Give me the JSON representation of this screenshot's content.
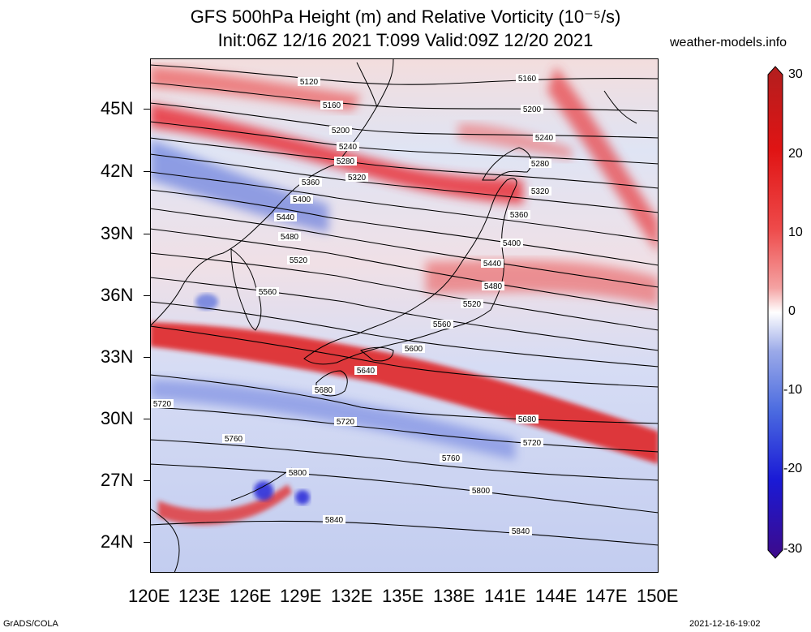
{
  "header": {
    "title_line1": "GFS 500hPa Height (m) and Relative Vorticity (10⁻⁵/s)",
    "title_line2": "Init:06Z 12/16 2021 T:099 Valid:09Z 12/20 2021",
    "site": "weather-models.info"
  },
  "axes": {
    "lat_labels": [
      "45N",
      "42N",
      "39N",
      "36N",
      "33N",
      "30N",
      "27N",
      "24N"
    ],
    "lon_labels": [
      "120E",
      "123E",
      "126E",
      "129E",
      "132E",
      "135E",
      "138E",
      "141E",
      "144E",
      "147E",
      "150E"
    ]
  },
  "colorbar": {
    "ticks": [
      "30",
      "20",
      "10",
      "0",
      "-10",
      "-20",
      "-30"
    ],
    "colors": [
      "#3d0a8a",
      "#1a1ad6",
      "#4b6be0",
      "#9aa9e8",
      "#ffffff",
      "#f4a2a2",
      "#ee4a4a",
      "#e01414",
      "#b21e1e"
    ]
  },
  "contour_labels": [
    "5120",
    "5160",
    "5200",
    "5240",
    "5280",
    "5320",
    "5360",
    "5400",
    "5440",
    "5480",
    "5520",
    "5560",
    "5600",
    "5640",
    "5680",
    "5720",
    "5760",
    "5800",
    "5840"
  ],
  "footer": {
    "left": "GrADS/COLA",
    "right": "2021-12-16-19:02"
  }
}
